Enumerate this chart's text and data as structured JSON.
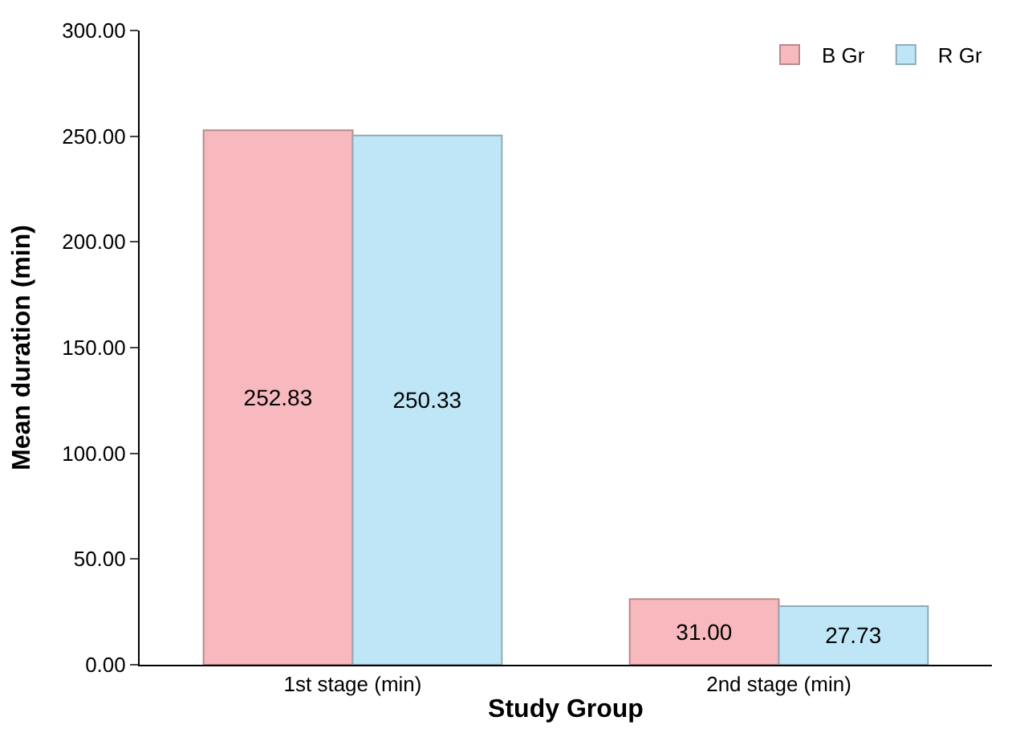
{
  "chart_data": {
    "type": "bar",
    "xlabel": "Study Group",
    "ylabel": "Mean duration (min)",
    "categories": [
      "1st stage (min)",
      "2nd stage (min)"
    ],
    "series": [
      {
        "name": "B Gr",
        "color": "#f7b9bd",
        "values": [
          252.83,
          31.0
        ],
        "value_labels": [
          "252.83",
          "31.00"
        ]
      },
      {
        "name": "R Gr",
        "color": "#bfe6f6",
        "values": [
          250.33,
          27.73
        ],
        "value_labels": [
          "250.33",
          "27.73"
        ]
      }
    ],
    "ylim": [
      0,
      300
    ],
    "yticks": [
      {
        "value": 0,
        "label": "0.00"
      },
      {
        "value": 50,
        "label": "50.00"
      },
      {
        "value": 100,
        "label": "100.00"
      },
      {
        "value": 150,
        "label": "150.00"
      },
      {
        "value": 200,
        "label": "200.00"
      },
      {
        "value": 250,
        "label": "250.00"
      },
      {
        "value": 300,
        "label": "300.00"
      }
    ],
    "legend": "top right"
  }
}
